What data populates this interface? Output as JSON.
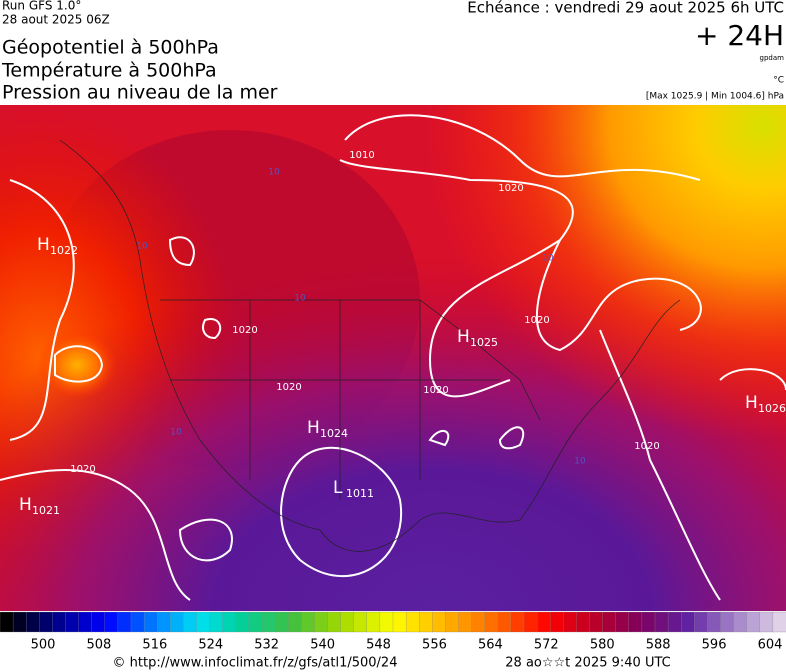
{
  "header": {
    "run": "Run GFS 1.0°",
    "date": "28 aout 2025 06Z",
    "titles": [
      "Géopotentiel à 500hPa",
      "Température à 500hPa",
      "Pression au niveau de la mer"
    ],
    "echeance": "Echéance : vendredi 29 aout 2025 6h UTC",
    "lead": "+ 24H",
    "unit_geo": "gpdam",
    "unit_temp": "°C",
    "range": "[Max 1025.9 | Min 1004.6] hPa"
  },
  "centers": [
    {
      "type": "H",
      "value": "1022"
    },
    {
      "type": "H",
      "value": "1025"
    },
    {
      "type": "H",
      "value": "1024"
    },
    {
      "type": "L",
      "value": "1011"
    },
    {
      "type": "H",
      "value": "1021"
    },
    {
      "type": "H",
      "value": "1026"
    }
  ],
  "isobar_labels": [
    "1010",
    "1020",
    "1020",
    "1020",
    "1020",
    "1020",
    "1020",
    "1020"
  ],
  "isotherm_labels": [
    "10",
    "10",
    "10",
    "10",
    "10",
    "10"
  ],
  "legend": {
    "ticks": [
      500,
      508,
      516,
      524,
      532,
      540,
      548,
      556,
      564,
      572,
      580,
      588,
      596,
      604
    ]
  },
  "footer": {
    "url": "© http://www.infoclimat.fr/z/gfs/atl1/500/24",
    "stamp": "28 ao☆☆t 2025  9:40 UTC"
  }
}
